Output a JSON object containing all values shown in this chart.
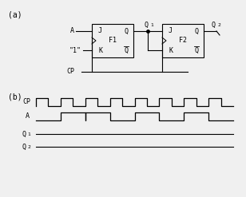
{
  "fig_width": 3.08,
  "fig_height": 2.47,
  "dpi": 100,
  "bg_color": "#f0f0f0",
  "line_color": "black",
  "label_a": "(a)",
  "label_b": "(b)",
  "f1_label": "F1",
  "f2_label": "F2",
  "cp_label": "CP",
  "a_label": "A",
  "one_label": "\"1\""
}
